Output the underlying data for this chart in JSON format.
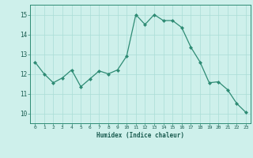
{
  "x": [
    0,
    1,
    2,
    3,
    4,
    5,
    6,
    7,
    8,
    9,
    10,
    11,
    12,
    13,
    14,
    15,
    16,
    17,
    18,
    19,
    20,
    21,
    22,
    23
  ],
  "y": [
    12.6,
    12.0,
    11.55,
    11.8,
    12.2,
    11.35,
    11.75,
    12.15,
    12.0,
    12.2,
    12.9,
    15.0,
    14.5,
    15.0,
    14.7,
    14.7,
    14.35,
    13.35,
    12.6,
    11.55,
    11.6,
    11.2,
    10.5,
    10.05
  ],
  "xlabel": "Humidex (Indice chaleur)",
  "ylabel": "",
  "xlim": [
    -0.5,
    23.5
  ],
  "ylim": [
    9.5,
    15.5
  ],
  "yticks": [
    10,
    11,
    12,
    13,
    14,
    15
  ],
  "xticks": [
    0,
    1,
    2,
    3,
    4,
    5,
    6,
    7,
    8,
    9,
    10,
    11,
    12,
    13,
    14,
    15,
    16,
    17,
    18,
    19,
    20,
    21,
    22,
    23
  ],
  "line_color": "#2e8b74",
  "marker_color": "#2e8b74",
  "bg_color": "#cef0eb",
  "grid_color": "#aaddd6",
  "axis_color": "#2e8b74",
  "tick_color": "#1a5c50",
  "xlabel_color": "#1a5c50"
}
